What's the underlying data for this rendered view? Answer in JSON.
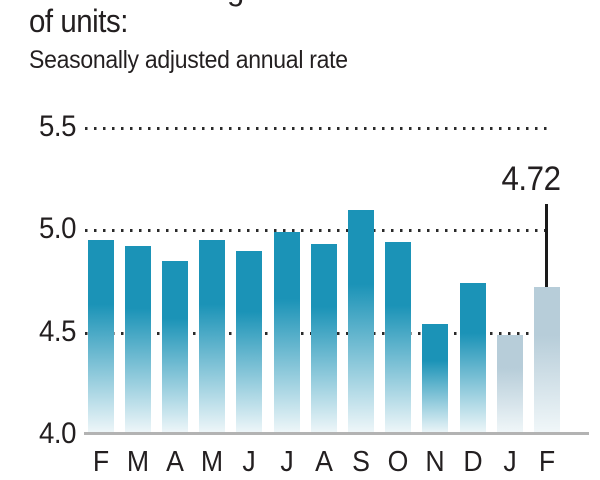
{
  "chart_data": {
    "type": "bar",
    "title": "of units:",
    "subtitle": "Seasonally adjusted annual rate",
    "cropped_line_fragment": "g",
    "categories": [
      "F",
      "M",
      "A",
      "M",
      "J",
      "J",
      "A",
      "S",
      "O",
      "N",
      "D",
      "J",
      "F"
    ],
    "values": [
      4.95,
      4.92,
      4.85,
      4.95,
      4.9,
      4.99,
      4.93,
      5.1,
      4.94,
      4.54,
      4.74,
      4.49,
      4.72
    ],
    "light_bars": [
      11,
      12
    ],
    "ylim": [
      4.0,
      5.5
    ],
    "yticks": [
      {
        "value": 4.0,
        "label": "4.0"
      },
      {
        "value": 4.5,
        "label": "4.5"
      },
      {
        "value": 5.0,
        "label": "5.0"
      },
      {
        "value": 5.5,
        "label": "5.5"
      }
    ],
    "grid": {
      "dotted_at": [
        4.5,
        5.0,
        5.5
      ],
      "baseline_at": 4.0,
      "legend": "none"
    },
    "annotation": {
      "label": "4.72",
      "bar_index": 12
    },
    "colors": {
      "bar": "#1b93b7",
      "bar_light": "#b7cdd9",
      "fade_to": "#f2f8fa",
      "baseline": "#b3b3b3",
      "grid_dots": "#2a2a2a",
      "text": "#231f20",
      "annotation_line": "#1a1a1a"
    }
  }
}
